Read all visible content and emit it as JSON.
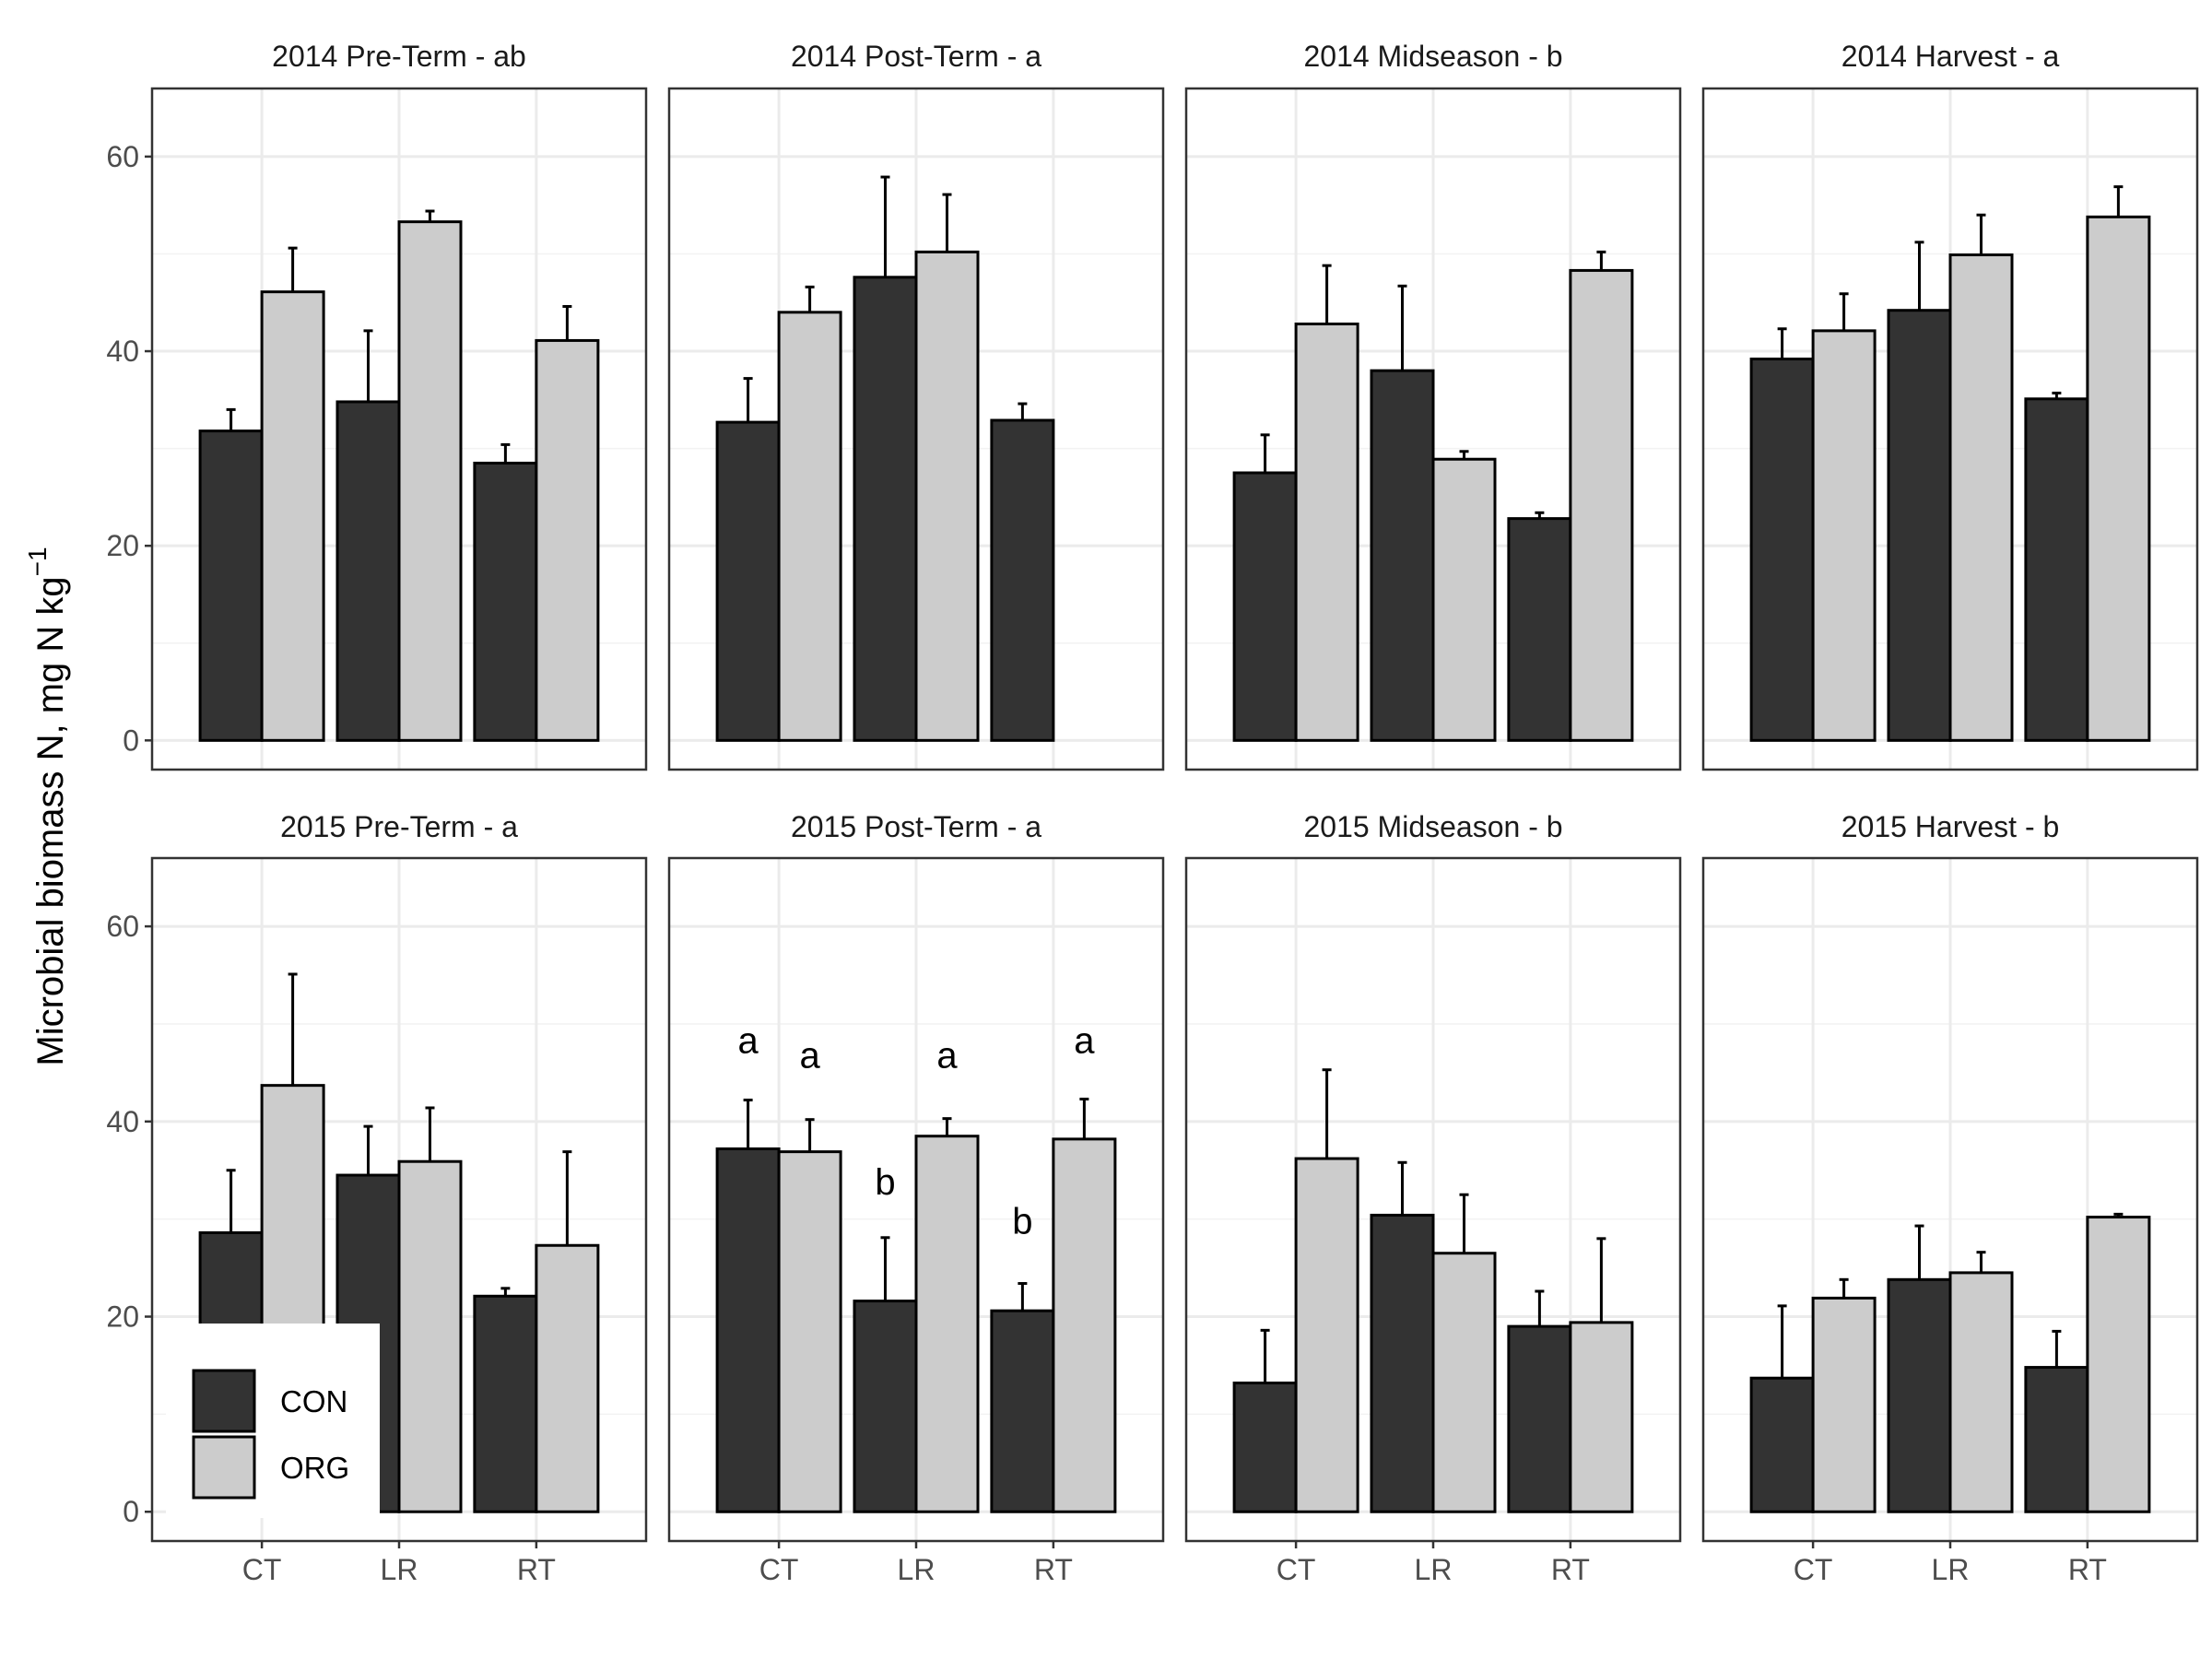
{
  "chart_data": {
    "type": "bar",
    "ylabel": "Microbial biomass N, mg N kg",
    "ylabel_sup": "−1",
    "categories": [
      "CT",
      "LR",
      "RT"
    ],
    "ylim": [
      -3,
      67
    ],
    "yticks": [
      "0",
      "20",
      "40",
      "60"
    ],
    "grid": true,
    "legend": {
      "placement": "bottom-left",
      "entries": [
        {
          "name": "CON",
          "color": "#333333"
        },
        {
          "name": "ORG",
          "color": "#cccccc"
        }
      ]
    },
    "colors": {
      "CON": "#333333",
      "ORG": "#cccccc"
    },
    "panels": [
      {
        "title": "2014 Pre-Term - ab",
        "series": [
          {
            "name": "CON",
            "values": [
              31.8,
              34.8,
              28.5
            ],
            "errors": [
              2.2,
              7.3,
              1.9
            ]
          },
          {
            "name": "ORG",
            "values": [
              46.1,
              53.3,
              41.1
            ],
            "errors": [
              4.5,
              1.1,
              3.5
            ]
          }
        ]
      },
      {
        "title": "2014 Post-Term - a",
        "series": [
          {
            "name": "CON",
            "values": [
              32.7,
              47.6,
              32.9
            ],
            "errors": [
              4.5,
              10.3,
              1.7
            ]
          },
          {
            "name": "ORG",
            "values": [
              44.0,
              50.2,
              null
            ],
            "errors": [
              2.6,
              5.9,
              null
            ]
          }
        ]
      },
      {
        "title": "2014 Midseason - b",
        "series": [
          {
            "name": "CON",
            "values": [
              27.5,
              38.0,
              22.8
            ],
            "errors": [
              3.9,
              8.7,
              0.6
            ]
          },
          {
            "name": "ORG",
            "values": [
              42.8,
              28.9,
              48.3
            ],
            "errors": [
              6.0,
              0.8,
              1.9
            ]
          }
        ]
      },
      {
        "title": "2014 Harvest - a",
        "series": [
          {
            "name": "CON",
            "values": [
              39.2,
              44.2,
              35.1
            ],
            "errors": [
              3.1,
              7.0,
              0.6
            ]
          },
          {
            "name": "ORG",
            "values": [
              42.1,
              49.9,
              53.8
            ],
            "errors": [
              3.8,
              4.1,
              3.1
            ]
          }
        ]
      },
      {
        "title": "2015 Pre-Term - a",
        "series": [
          {
            "name": "CON",
            "values": [
              28.6,
              34.5,
              22.1
            ],
            "errors": [
              6.4,
              5.0,
              0.8
            ]
          },
          {
            "name": "ORG",
            "values": [
              43.7,
              35.9,
              27.3
            ],
            "errors": [
              11.4,
              5.5,
              9.6
            ]
          }
        ]
      },
      {
        "title": "2015 Post-Term - a",
        "series": [
          {
            "name": "CON",
            "values": [
              37.2,
              21.6,
              20.6
            ],
            "errors": [
              5.0,
              6.5,
              2.8
            ]
          },
          {
            "name": "ORG",
            "values": [
              36.9,
              38.5,
              38.2
            ],
            "errors": [
              3.3,
              1.8,
              4.1
            ]
          }
        ],
        "annotations": [
          {
            "category": "CT",
            "series": "CON",
            "y": 47.0,
            "text": "a"
          },
          {
            "category": "CT",
            "series": "ORG",
            "y": 45.5,
            "text": "a"
          },
          {
            "category": "LR",
            "series": "CON",
            "y": 32.5,
            "text": "b"
          },
          {
            "category": "LR",
            "series": "ORG",
            "y": 45.5,
            "text": "a"
          },
          {
            "category": "RT",
            "series": "CON",
            "y": 28.5,
            "text": "b"
          },
          {
            "category": "RT",
            "series": "ORG",
            "y": 47.0,
            "text": "a"
          }
        ]
      },
      {
        "title": "2015 Midseason - b",
        "series": [
          {
            "name": "CON",
            "values": [
              13.2,
              30.4,
              19.0
            ],
            "errors": [
              5.4,
              5.4,
              3.6
            ]
          },
          {
            "name": "ORG",
            "values": [
              36.2,
              26.5,
              19.4
            ],
            "errors": [
              9.1,
              6.0,
              8.6
            ]
          }
        ]
      },
      {
        "title": "2015 Harvest - b",
        "series": [
          {
            "name": "CON",
            "values": [
              13.7,
              23.8,
              14.8
            ],
            "errors": [
              7.4,
              5.5,
              3.7
            ]
          },
          {
            "name": "ORG",
            "values": [
              21.9,
              24.5,
              30.2
            ],
            "errors": [
              1.9,
              2.1,
              0.3
            ]
          }
        ]
      }
    ]
  }
}
